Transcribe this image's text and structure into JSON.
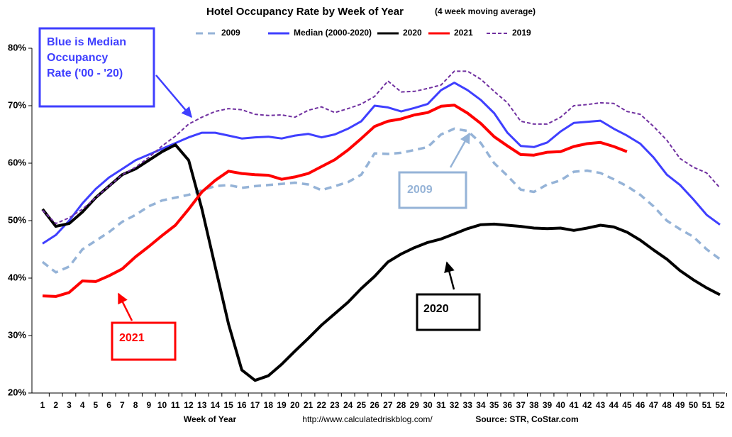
{
  "chart_data": {
    "type": "line",
    "title": "Hotel Occupancy Rate by  Week of Year",
    "subtitle": "(4 week moving average)",
    "xlabel": "Week of Year",
    "url": "http://www.calculatedriskblog.com/",
    "source": "Source: STR, CoStar.com",
    "categories": [
      1,
      2,
      3,
      4,
      5,
      6,
      7,
      8,
      9,
      10,
      11,
      12,
      13,
      14,
      15,
      16,
      17,
      18,
      19,
      20,
      21,
      22,
      23,
      24,
      25,
      26,
      27,
      28,
      29,
      30,
      31,
      32,
      33,
      34,
      35,
      36,
      37,
      38,
      39,
      40,
      41,
      42,
      43,
      44,
      45,
      46,
      47,
      48,
      49,
      50,
      51,
      52
    ],
    "ylim": [
      20,
      80
    ],
    "yticks": [
      {
        "value": 20,
        "label": "20%"
      },
      {
        "value": 30,
        "label": "30%"
      },
      {
        "value": 40,
        "label": "40%"
      },
      {
        "value": 50,
        "label": "50%"
      },
      {
        "value": 60,
        "label": "60%"
      },
      {
        "value": 70,
        "label": "70%"
      },
      {
        "value": 80,
        "label": "80%"
      }
    ],
    "grid": false,
    "series": [
      {
        "name": "2009",
        "color": "#95b3d7",
        "dash": "10,7",
        "width": 3.5,
        "values": [
          42.8,
          41,
          42,
          45,
          46.5,
          48,
          49.8,
          51,
          52.5,
          53.5,
          54,
          54.5,
          55.3,
          56,
          56.2,
          55.7,
          56,
          56.2,
          56.4,
          56.6,
          56.3,
          55.3,
          56,
          56.7,
          58,
          61.7,
          61.6,
          61.8,
          62.3,
          62.8,
          65,
          66,
          65.6,
          63.5,
          60,
          57.8,
          55.4,
          55,
          56.3,
          57,
          58.5,
          58.7,
          58.3,
          57.2,
          56,
          54.5,
          52.5,
          50,
          48.5,
          47.2,
          45,
          43.3
        ]
      },
      {
        "name": "Median (2000-2020)",
        "color": "#3f3fff",
        "dash": null,
        "width": 3,
        "values": [
          46,
          47.5,
          50,
          53,
          55.5,
          57.5,
          59,
          60.5,
          61.5,
          62.5,
          63.5,
          64.5,
          65.3,
          65.3,
          64.8,
          64.3,
          64.5,
          64.6,
          64.3,
          64.8,
          65.1,
          64.5,
          65,
          66,
          67.3,
          70,
          69.7,
          69,
          69.6,
          70.3,
          72.7,
          74,
          72.7,
          71,
          68.7,
          65.3,
          63,
          62.8,
          63.6,
          65.5,
          67,
          67.2,
          67.4,
          66,
          64.8,
          63.4,
          61,
          58,
          56.2,
          53.7,
          51,
          49.3
        ]
      },
      {
        "name": "2020",
        "color": "#000000",
        "dash": null,
        "width": 4,
        "values": [
          52,
          49,
          49.5,
          51.5,
          54,
          56,
          58,
          59,
          60.5,
          62,
          63.2,
          60.5,
          52,
          42,
          32,
          24,
          22.2,
          23,
          25,
          27.3,
          29.5,
          31.8,
          33.8,
          35.8,
          38.2,
          40.3,
          42.8,
          44.2,
          45.3,
          46.2,
          46.8,
          47.7,
          48.6,
          49.3,
          49.4,
          49.2,
          49,
          48.7,
          48.6,
          48.7,
          48.3,
          48.7,
          49.2,
          48.9,
          48,
          46.6,
          44.9,
          43.3,
          41.3,
          39.7,
          38.3,
          37.1
        ]
      },
      {
        "name": "2021",
        "color": "#ff0000",
        "dash": null,
        "width": 4,
        "values": [
          36.9,
          36.8,
          37.5,
          39.5,
          39.4,
          40.4,
          41.6,
          43.7,
          45.5,
          47.4,
          49.2,
          52,
          55,
          57,
          58.6,
          58.2,
          58,
          57.9,
          57.2,
          57.6,
          58.2,
          59.4,
          60.6,
          62.3,
          64.3,
          66.4,
          67.3,
          67.7,
          68.4,
          68.8,
          69.9,
          70.1,
          68.7,
          66.9,
          64.6,
          63,
          61.5,
          61.4,
          61.9,
          62,
          62.9,
          63.4,
          63.6,
          62.9,
          62,
          null,
          null,
          null,
          null,
          null,
          null,
          null
        ]
      },
      {
        "name": "2019",
        "color": "#7030a0",
        "dash": "5,3",
        "width": 2,
        "values": [
          51.8,
          49.5,
          50.5,
          52,
          54,
          56,
          58,
          59.3,
          61,
          63,
          64.7,
          66.8,
          68,
          69,
          69.5,
          69.3,
          68.5,
          68.3,
          68.4,
          68,
          69.2,
          69.8,
          68.8,
          69.5,
          70.3,
          71.6,
          74.3,
          72.4,
          72.5,
          73,
          73.6,
          76,
          76,
          74.6,
          72.5,
          70.5,
          67.3,
          66.8,
          66.8,
          68,
          70,
          70.2,
          70.5,
          70.4,
          69,
          68.5,
          66.4,
          64,
          60.8,
          59.3,
          58.3,
          55.7
        ]
      }
    ],
    "annotations": [
      {
        "lines": [
          "Blue is Median",
          "Occupancy",
          "Rate ('00 - '20)"
        ],
        "color": "#3f3fff"
      },
      {
        "lines": [
          "2009"
        ],
        "color": "#95b3d7"
      },
      {
        "lines": [
          "2020"
        ],
        "color": "#000000"
      },
      {
        "lines": [
          "2021"
        ],
        "color": "#ff0000"
      }
    ]
  }
}
